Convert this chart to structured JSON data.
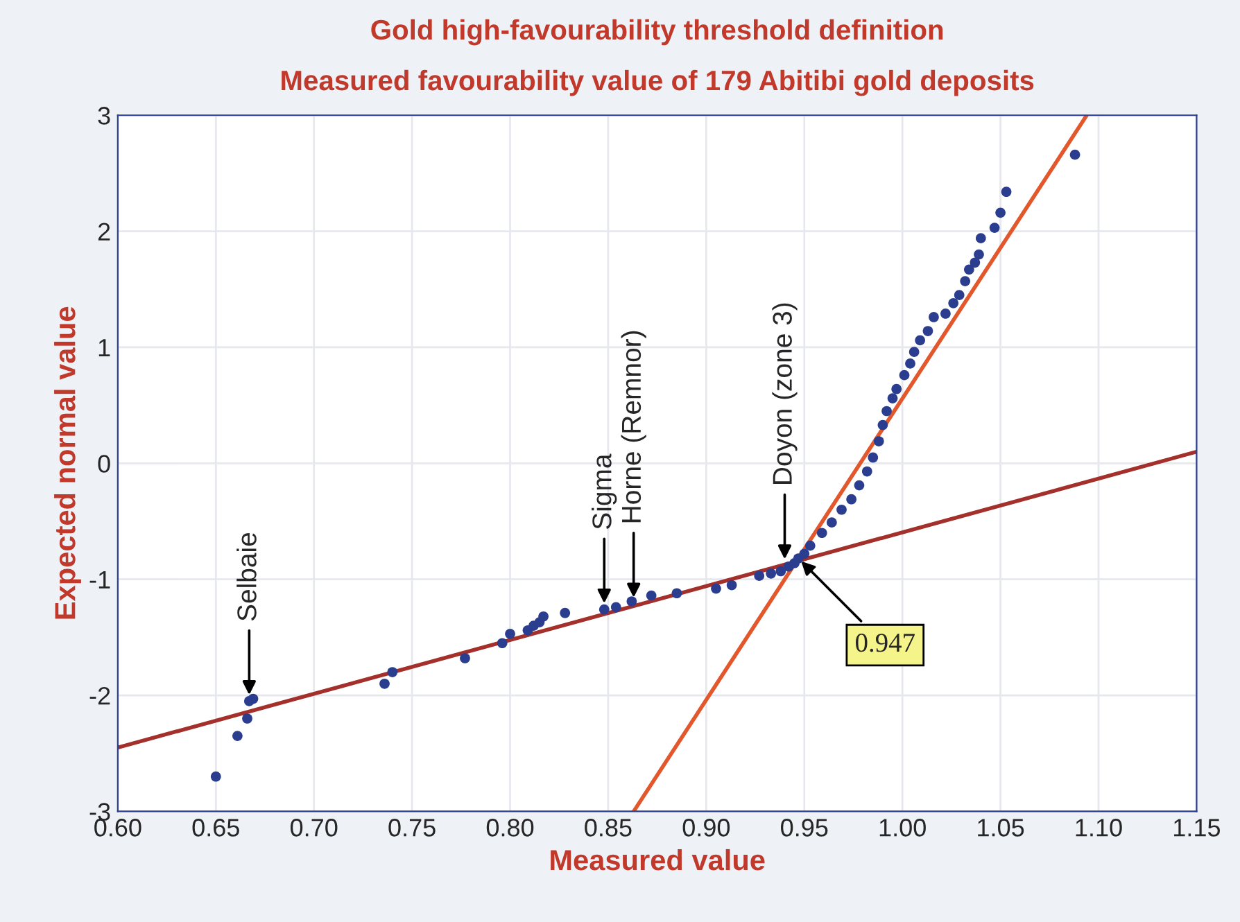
{
  "chart_data": {
    "type": "scatter",
    "title": "Gold high-favourability threshold definition",
    "subtitle": "Measured favourability value of 179 Abitibi gold deposits",
    "xlabel": "Measured value",
    "ylabel": "Expected normal value",
    "xlim": [
      0.6,
      1.15
    ],
    "xticks": [
      {
        "value": 0.6,
        "label": "0.60"
      },
      {
        "value": 0.65,
        "label": "0.65"
      },
      {
        "value": 0.7,
        "label": "0.70"
      },
      {
        "value": 0.75,
        "label": "0.75"
      },
      {
        "value": 0.8,
        "label": "0.80"
      },
      {
        "value": 0.85,
        "label": "0.85"
      },
      {
        "value": 0.9,
        "label": "0.90"
      },
      {
        "value": 0.95,
        "label": "0.95"
      },
      {
        "value": 1.0,
        "label": "1.00"
      },
      {
        "value": 1.05,
        "label": "1.05"
      },
      {
        "value": 1.1,
        "label": "1.10"
      },
      {
        "value": 1.15,
        "label": "1.15"
      }
    ],
    "ylim": [
      -3,
      3
    ],
    "yticks": [
      -3,
      -2,
      -1,
      0,
      1,
      2,
      3
    ],
    "grid": true,
    "series": [
      {
        "marker": "circle",
        "color": "#2b3d8f",
        "x": [
          0.65,
          0.661,
          0.666,
          0.667,
          0.669,
          0.736,
          0.74,
          0.777,
          0.796,
          0.8,
          0.809,
          0.812,
          0.815,
          0.817,
          0.828,
          0.848,
          0.854,
          0.862,
          0.872,
          0.885,
          0.905,
          0.913,
          0.927,
          0.933,
          0.938,
          0.942,
          0.945,
          0.947,
          0.95,
          0.953,
          0.959,
          0.964,
          0.969,
          0.974,
          0.978,
          0.982,
          0.985,
          0.988,
          0.99,
          0.992,
          0.995,
          0.997,
          1.001,
          1.004,
          1.006,
          1.009,
          1.013,
          1.016,
          1.022,
          1.026,
          1.029,
          1.032,
          1.034,
          1.037,
          1.039,
          1.04,
          1.047,
          1.05,
          1.053,
          1.088
        ],
        "values": [
          -2.7,
          -2.35,
          -2.2,
          -2.05,
          -2.03,
          -1.9,
          -1.8,
          -1.68,
          -1.55,
          -1.47,
          -1.44,
          -1.4,
          -1.37,
          -1.32,
          -1.29,
          -1.26,
          -1.24,
          -1.19,
          -1.14,
          -1.12,
          -1.08,
          -1.05,
          -0.97,
          -0.95,
          -0.93,
          -0.89,
          -0.86,
          -0.82,
          -0.78,
          -0.71,
          -0.6,
          -0.51,
          -0.4,
          -0.31,
          -0.19,
          -0.07,
          0.05,
          0.19,
          0.33,
          0.45,
          0.56,
          0.64,
          0.76,
          0.86,
          0.96,
          1.06,
          1.14,
          1.26,
          1.29,
          1.38,
          1.45,
          1.57,
          1.67,
          1.73,
          1.8,
          1.94,
          2.03,
          2.16,
          2.34,
          2.66
        ]
      },
      {
        "type": "line",
        "marker": "none",
        "color": "#a3302b",
        "x": [
          0.6,
          1.15
        ],
        "values": [
          -2.45,
          0.1
        ]
      },
      {
        "type": "line",
        "marker": "none",
        "color": "#e2572b",
        "x": [
          0.863,
          1.094
        ],
        "values": [
          -3,
          3
        ]
      }
    ],
    "annotations": [
      {
        "text": "Selbaie",
        "x": 0.667,
        "y": -2.03
      },
      {
        "text": "Sigma",
        "x": 0.848,
        "y": -1.24
      },
      {
        "text": "Horne (Remnor)",
        "x": 0.863,
        "y": -1.19
      },
      {
        "text": "Doyon (zone 3)",
        "x": 0.94,
        "y": -0.86
      },
      {
        "text": "0.947",
        "x": 0.947,
        "y": -0.82
      }
    ]
  }
}
